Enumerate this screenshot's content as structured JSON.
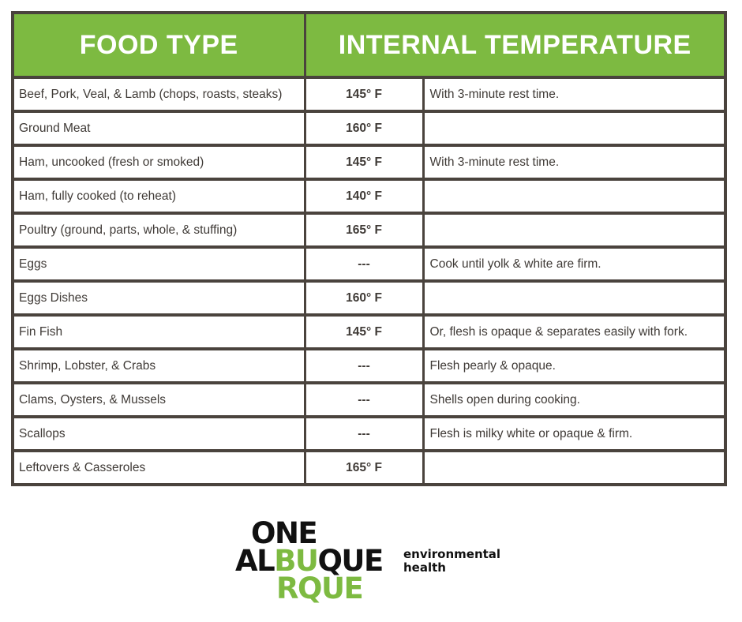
{
  "header": {
    "food_type": "FOOD TYPE",
    "internal_temperature": "INTERNAL TEMPERATURE"
  },
  "rows": [
    {
      "food": "Beef, Pork, Veal, & Lamb (chops, roasts, steaks)",
      "temp": "145° F",
      "note": "With 3-minute rest time."
    },
    {
      "food": "Ground Meat",
      "temp": "160° F",
      "note": ""
    },
    {
      "food": "Ham, uncooked (fresh or smoked)",
      "temp": "145° F",
      "note": "With 3-minute rest time."
    },
    {
      "food": "Ham, fully cooked (to reheat)",
      "temp": "140° F",
      "note": ""
    },
    {
      "food": "Poultry (ground, parts, whole, & stuffing)",
      "temp": "165° F",
      "note": ""
    },
    {
      "food": "Eggs",
      "temp": "---",
      "note": "Cook until yolk & white are firm."
    },
    {
      "food": "Eggs Dishes",
      "temp": "160° F",
      "note": ""
    },
    {
      "food": "Fin Fish",
      "temp": "145° F",
      "note": "Or, flesh is opaque & separates easily with fork."
    },
    {
      "food": "Shrimp, Lobster, & Crabs",
      "temp": "---",
      "note": "Flesh pearly & opaque."
    },
    {
      "food": "Clams, Oysters, & Mussels",
      "temp": "---",
      "note": "Shells open during cooking."
    },
    {
      "food": "Scallops",
      "temp": "---",
      "note": "Flesh is milky white or opaque & firm."
    },
    {
      "food": "Leftovers & Casseroles",
      "temp": "165° F",
      "note": ""
    }
  ],
  "logo": {
    "line1": "ONE",
    "line2_black_a": "AL",
    "line2_green": "BU",
    "line2_black_b": "QUE",
    "line3": "RQUE",
    "tagline_1": "environmental",
    "tagline_2": "health"
  },
  "colors": {
    "header_green": "#7dba41",
    "border": "#4a433d",
    "text": "#3f3a36"
  }
}
